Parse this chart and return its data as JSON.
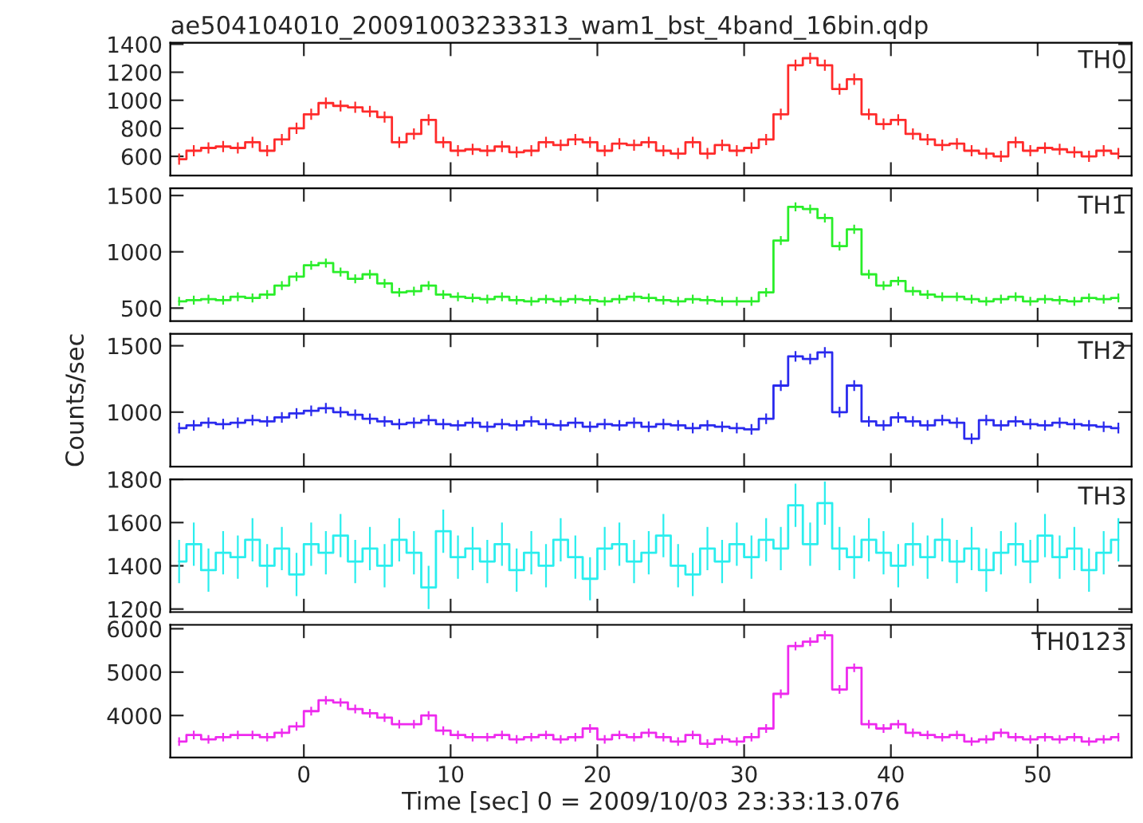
{
  "chart_data": [
    {
      "type": "step",
      "title": "ae504104010_20091003233313_wam1_bst_4band_16bin.qdp",
      "tick_labels": "y",
      "xlim": [
        -9.1,
        56.4
      ],
      "xticks": [
        0,
        10,
        20,
        30,
        40,
        50
      ],
      "ylim": [
        463,
        1410
      ],
      "yticks": [
        600,
        800,
        1000,
        1200,
        1400
      ],
      "x": [
        -8.5,
        -7.5,
        -6.5,
        -5.5,
        -4.5,
        -3.5,
        -2.5,
        -1.5,
        -0.5,
        0.5,
        1.5,
        2.5,
        3.5,
        4.5,
        5.5,
        6.5,
        7.5,
        8.5,
        9.5,
        10.5,
        11.5,
        12.5,
        13.5,
        14.5,
        15.5,
        16.5,
        17.5,
        18.5,
        19.5,
        20.5,
        21.5,
        22.5,
        23.5,
        24.5,
        25.5,
        26.5,
        27.5,
        28.5,
        29.5,
        30.5,
        31.5,
        32.5,
        33.5,
        34.5,
        35.5,
        36.5,
        37.5,
        38.5,
        39.5,
        40.5,
        41.5,
        42.5,
        43.5,
        44.5,
        45.5,
        46.5,
        47.5,
        48.5,
        49.5,
        50.5,
        51.5,
        52.5,
        53.5,
        54.5,
        55.5
      ],
      "series": [
        {
          "name": "TH0",
          "color": "#ff2a2a",
          "values": [
            580,
            640,
            660,
            670,
            660,
            700,
            640,
            720,
            800,
            900,
            980,
            960,
            950,
            920,
            880,
            700,
            760,
            860,
            700,
            640,
            650,
            640,
            670,
            630,
            640,
            700,
            680,
            720,
            700,
            640,
            690,
            680,
            700,
            640,
            620,
            700,
            620,
            680,
            640,
            660,
            720,
            900,
            1250,
            1300,
            1250,
            1080,
            1150,
            900,
            830,
            860,
            760,
            720,
            680,
            690,
            640,
            620,
            600,
            700,
            640,
            660,
            650,
            630,
            600,
            640,
            620
          ],
          "errors": [
            40,
            40,
            40,
            40,
            40,
            40,
            40,
            40,
            40,
            40,
            40,
            40,
            40,
            40,
            40,
            40,
            40,
            40,
            40,
            40,
            40,
            40,
            40,
            40,
            40,
            40,
            40,
            40,
            40,
            40,
            40,
            40,
            40,
            40,
            40,
            40,
            40,
            40,
            40,
            40,
            40,
            40,
            40,
            40,
            40,
            40,
            40,
            40,
            40,
            40,
            40,
            40,
            40,
            40,
            40,
            40,
            40,
            40,
            40,
            40,
            40,
            40,
            40,
            40,
            40
          ]
        }
      ]
    },
    {
      "type": "step",
      "tick_labels": "y",
      "xlim": [
        -9.1,
        56.4
      ],
      "xticks": [
        0,
        10,
        20,
        30,
        40,
        50
      ],
      "ylim": [
        385,
        1564
      ],
      "yticks": [
        500,
        1000,
        1500
      ],
      "x": [
        -8.5,
        -7.5,
        -6.5,
        -5.5,
        -4.5,
        -3.5,
        -2.5,
        -1.5,
        -0.5,
        0.5,
        1.5,
        2.5,
        3.5,
        4.5,
        5.5,
        6.5,
        7.5,
        8.5,
        9.5,
        10.5,
        11.5,
        12.5,
        13.5,
        14.5,
        15.5,
        16.5,
        17.5,
        18.5,
        19.5,
        20.5,
        21.5,
        22.5,
        23.5,
        24.5,
        25.5,
        26.5,
        27.5,
        28.5,
        29.5,
        30.5,
        31.5,
        32.5,
        33.5,
        34.5,
        35.5,
        36.5,
        37.5,
        38.5,
        39.5,
        40.5,
        41.5,
        42.5,
        43.5,
        44.5,
        45.5,
        46.5,
        47.5,
        48.5,
        49.5,
        50.5,
        51.5,
        52.5,
        53.5,
        54.5,
        55.5
      ],
      "series": [
        {
          "name": "TH1",
          "color": "#2aee2a",
          "values": [
            560,
            570,
            580,
            570,
            600,
            590,
            620,
            700,
            780,
            880,
            900,
            820,
            760,
            800,
            720,
            640,
            650,
            700,
            620,
            600,
            590,
            580,
            600,
            570,
            560,
            580,
            560,
            580,
            570,
            560,
            580,
            600,
            590,
            570,
            560,
            580,
            570,
            560,
            560,
            560,
            640,
            1100,
            1400,
            1380,
            1300,
            1050,
            1200,
            800,
            700,
            740,
            650,
            620,
            600,
            600,
            580,
            560,
            580,
            600,
            560,
            580,
            570,
            560,
            590,
            580,
            590
          ],
          "errors": [
            40,
            40,
            40,
            40,
            40,
            40,
            40,
            40,
            40,
            40,
            40,
            40,
            40,
            40,
            40,
            40,
            40,
            40,
            40,
            40,
            40,
            40,
            40,
            40,
            40,
            40,
            40,
            40,
            40,
            40,
            40,
            40,
            40,
            40,
            40,
            40,
            40,
            40,
            40,
            40,
            40,
            40,
            40,
            40,
            40,
            40,
            40,
            40,
            40,
            40,
            40,
            40,
            40,
            40,
            40,
            40,
            40,
            40,
            40,
            40,
            40,
            40,
            40,
            40,
            40
          ]
        }
      ]
    },
    {
      "type": "step",
      "tick_labels": "y",
      "ylabel": "Counts/sec",
      "xlim": [
        -9.1,
        56.4
      ],
      "xticks": [
        0,
        10,
        20,
        30,
        40,
        50
      ],
      "ylim": [
        590,
        1590
      ],
      "yticks": [
        1000,
        1500
      ],
      "x": [
        -8.5,
        -7.5,
        -6.5,
        -5.5,
        -4.5,
        -3.5,
        -2.5,
        -1.5,
        -0.5,
        0.5,
        1.5,
        2.5,
        3.5,
        4.5,
        5.5,
        6.5,
        7.5,
        8.5,
        9.5,
        10.5,
        11.5,
        12.5,
        13.5,
        14.5,
        15.5,
        16.5,
        17.5,
        18.5,
        19.5,
        20.5,
        21.5,
        22.5,
        23.5,
        24.5,
        25.5,
        26.5,
        27.5,
        28.5,
        29.5,
        30.5,
        31.5,
        32.5,
        33.5,
        34.5,
        35.5,
        36.5,
        37.5,
        38.5,
        39.5,
        40.5,
        41.5,
        42.5,
        43.5,
        44.5,
        45.5,
        46.5,
        47.5,
        48.5,
        49.5,
        50.5,
        51.5,
        52.5,
        53.5,
        54.5,
        55.5
      ],
      "series": [
        {
          "name": "TH2",
          "color": "#2a2aee",
          "values": [
            880,
            900,
            920,
            910,
            920,
            940,
            930,
            960,
            990,
            1010,
            1030,
            1000,
            980,
            950,
            930,
            910,
            920,
            940,
            910,
            900,
            920,
            890,
            910,
            900,
            930,
            910,
            900,
            920,
            890,
            910,
            900,
            920,
            890,
            910,
            900,
            880,
            900,
            890,
            880,
            870,
            950,
            1200,
            1420,
            1400,
            1450,
            1000,
            1200,
            930,
            900,
            960,
            930,
            900,
            940,
            920,
            800,
            940,
            900,
            930,
            910,
            900,
            920,
            910,
            900,
            890,
            880
          ],
          "errors": [
            40,
            40,
            40,
            40,
            40,
            40,
            40,
            40,
            40,
            40,
            40,
            40,
            40,
            40,
            40,
            40,
            40,
            40,
            40,
            40,
            40,
            40,
            40,
            40,
            40,
            40,
            40,
            40,
            40,
            40,
            40,
            40,
            40,
            40,
            40,
            40,
            40,
            40,
            40,
            40,
            40,
            40,
            40,
            40,
            40,
            40,
            40,
            40,
            40,
            40,
            40,
            40,
            40,
            40,
            40,
            40,
            40,
            40,
            40,
            40,
            40,
            40,
            40,
            40,
            40
          ]
        }
      ]
    },
    {
      "type": "step",
      "tick_labels": "y",
      "xlim": [
        -9.1,
        56.4
      ],
      "xticks": [
        0,
        10,
        20,
        30,
        40,
        50
      ],
      "ylim": [
        1186,
        1800
      ],
      "yticks": [
        1200,
        1400,
        1600,
        1800
      ],
      "x": [
        -8.5,
        -7.5,
        -6.5,
        -5.5,
        -4.5,
        -3.5,
        -2.5,
        -1.5,
        -0.5,
        0.5,
        1.5,
        2.5,
        3.5,
        4.5,
        5.5,
        6.5,
        7.5,
        8.5,
        9.5,
        10.5,
        11.5,
        12.5,
        13.5,
        14.5,
        15.5,
        16.5,
        17.5,
        18.5,
        19.5,
        20.5,
        21.5,
        22.5,
        23.5,
        24.5,
        25.5,
        26.5,
        27.5,
        28.5,
        29.5,
        30.5,
        31.5,
        32.5,
        33.5,
        34.5,
        35.5,
        36.5,
        37.5,
        38.5,
        39.5,
        40.5,
        41.5,
        42.5,
        43.5,
        44.5,
        45.5,
        46.5,
        47.5,
        48.5,
        49.5,
        50.5,
        51.5,
        52.5,
        53.5,
        54.5,
        55.5
      ],
      "series": [
        {
          "name": "TH3",
          "color": "#2aeeee",
          "values": [
            1420,
            1500,
            1380,
            1460,
            1440,
            1520,
            1400,
            1480,
            1360,
            1500,
            1460,
            1540,
            1420,
            1480,
            1400,
            1520,
            1460,
            1300,
            1560,
            1440,
            1480,
            1420,
            1500,
            1380,
            1460,
            1400,
            1520,
            1440,
            1340,
            1480,
            1500,
            1420,
            1460,
            1540,
            1400,
            1360,
            1480,
            1420,
            1500,
            1440,
            1520,
            1480,
            1680,
            1500,
            1690,
            1480,
            1440,
            1520,
            1460,
            1400,
            1500,
            1440,
            1520,
            1420,
            1480,
            1380,
            1460,
            1500,
            1420,
            1540,
            1440,
            1480,
            1380,
            1460,
            1520
          ],
          "errors": [
            100,
            100,
            100,
            100,
            100,
            100,
            100,
            100,
            100,
            100,
            100,
            100,
            100,
            100,
            100,
            100,
            100,
            100,
            100,
            100,
            100,
            100,
            100,
            100,
            100,
            100,
            100,
            100,
            100,
            100,
            100,
            100,
            100,
            100,
            100,
            100,
            100,
            100,
            100,
            100,
            100,
            100,
            100,
            100,
            100,
            100,
            100,
            100,
            100,
            100,
            100,
            100,
            100,
            100,
            100,
            100,
            100,
            100,
            100,
            100,
            100,
            100,
            100,
            100,
            100
          ]
        }
      ]
    },
    {
      "type": "step",
      "xlabel": "Time [sec] 0 = 2009/10/03 23:33:13.076",
      "xlim": [
        -9.1,
        56.4
      ],
      "xticks": [
        0,
        10,
        20,
        30,
        40,
        50
      ],
      "ylim": [
        3030,
        6090
      ],
      "yticks": [
        4000,
        5000,
        6000
      ],
      "x": [
        -8.5,
        -7.5,
        -6.5,
        -5.5,
        -4.5,
        -3.5,
        -2.5,
        -1.5,
        -0.5,
        0.5,
        1.5,
        2.5,
        3.5,
        4.5,
        5.5,
        6.5,
        7.5,
        8.5,
        9.5,
        10.5,
        11.5,
        12.5,
        13.5,
        14.5,
        15.5,
        16.5,
        17.5,
        18.5,
        19.5,
        20.5,
        21.5,
        22.5,
        23.5,
        24.5,
        25.5,
        26.5,
        27.5,
        28.5,
        29.5,
        30.5,
        31.5,
        32.5,
        33.5,
        34.5,
        35.5,
        36.5,
        37.5,
        38.5,
        39.5,
        40.5,
        41.5,
        42.5,
        43.5,
        44.5,
        45.5,
        46.5,
        47.5,
        48.5,
        49.5,
        50.5,
        51.5,
        52.5,
        53.5,
        54.5,
        55.5
      ],
      "series": [
        {
          "name": "TH0123",
          "color": "#ee2aee",
          "values": [
            3400,
            3550,
            3450,
            3500,
            3550,
            3550,
            3500,
            3600,
            3750,
            4100,
            4350,
            4300,
            4150,
            4050,
            3950,
            3800,
            3800,
            4000,
            3650,
            3550,
            3500,
            3500,
            3550,
            3450,
            3500,
            3550,
            3450,
            3500,
            3700,
            3450,
            3550,
            3500,
            3600,
            3500,
            3400,
            3550,
            3350,
            3450,
            3400,
            3500,
            3700,
            4500,
            5600,
            5700,
            5850,
            4600,
            5100,
            3800,
            3700,
            3800,
            3600,
            3550,
            3500,
            3550,
            3400,
            3450,
            3600,
            3500,
            3450,
            3500,
            3450,
            3500,
            3400,
            3450,
            3500
          ],
          "errors": [
            100,
            100,
            100,
            100,
            100,
            100,
            100,
            100,
            100,
            100,
            100,
            100,
            100,
            100,
            100,
            100,
            100,
            100,
            100,
            100,
            100,
            100,
            100,
            100,
            100,
            100,
            100,
            100,
            100,
            100,
            100,
            100,
            100,
            100,
            100,
            100,
            100,
            100,
            100,
            100,
            100,
            100,
            100,
            100,
            100,
            100,
            100,
            100,
            100,
            100,
            100,
            100,
            100,
            100,
            100,
            100,
            100,
            100,
            100,
            100,
            100,
            100,
            100,
            100,
            100
          ]
        }
      ]
    }
  ]
}
